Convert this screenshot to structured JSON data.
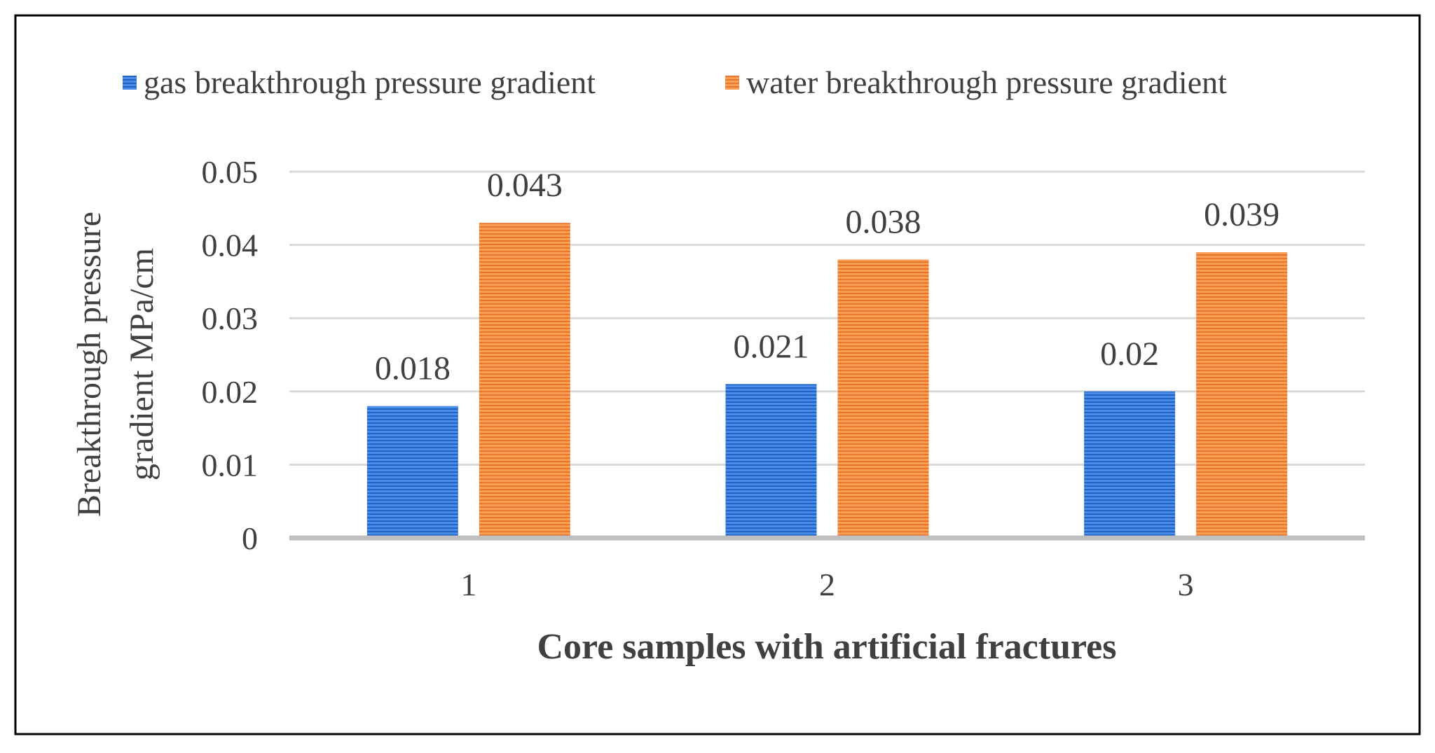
{
  "chart_data": {
    "type": "bar",
    "title": "",
    "categories": [
      "1",
      "2",
      "3"
    ],
    "series": [
      {
        "name": "gas breakthrough pressure gradient",
        "values": [
          0.018,
          0.021,
          0.02
        ],
        "labels": [
          "0.018",
          "0.021",
          "0.02"
        ],
        "color": "#2E75D6"
      },
      {
        "name": "water breakthrough pressure gradient",
        "values": [
          0.043,
          0.038,
          0.039
        ],
        "labels": [
          "0.043",
          "0.038",
          "0.039"
        ],
        "color": "#F08A3A"
      }
    ],
    "xlabel": "Core samples with artificial fractures",
    "ylabel_line1": "Breakthrough pressure",
    "ylabel_line2": "gradient MPa/cm",
    "ylim": [
      0,
      0.05
    ],
    "yticks": [
      "0",
      "0.01",
      "0.02",
      "0.03",
      "0.04",
      "0.05"
    ],
    "grid": true,
    "legend_position": "top"
  },
  "colors": {
    "gridline": "#D9D9D9",
    "baseline": "#BFBFBF",
    "text": "#404040",
    "border": "#000000"
  }
}
